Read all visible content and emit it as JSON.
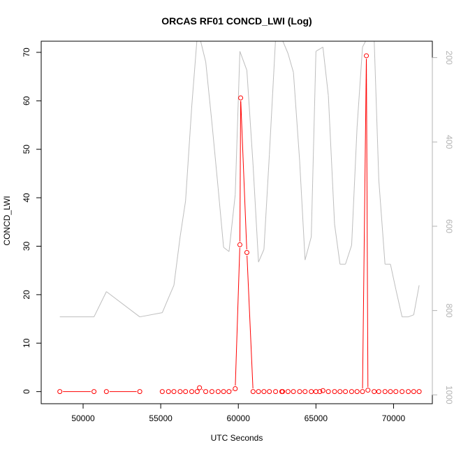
{
  "chart_data": {
    "type": "line",
    "title": "ORCAS RF01 CONCD_LWI (Log)",
    "xlabel": "UTC Seconds",
    "ylabel": "CONCD_LWI",
    "xlim": [
      47300,
      72500
    ],
    "ylim": [
      -2.5,
      72.3
    ],
    "x_ticks": [
      50000,
      55000,
      60000,
      65000,
      70000
    ],
    "y_ticks": [
      0,
      10,
      20,
      30,
      40,
      50,
      60,
      70
    ],
    "y2lim": [
      1021,
      161
    ],
    "y2_ticks": [
      200,
      400,
      600,
      800,
      1000
    ],
    "series": [
      {
        "role": "concentration",
        "color": "#ff0000",
        "marker": "open-circle",
        "x": [
          48500,
          50700,
          51500,
          53650,
          55100,
          55500,
          55850,
          56250,
          56600,
          57000,
          57350,
          57500,
          57900,
          58300,
          58700,
          59050,
          59400,
          59800,
          60100,
          60150,
          60550,
          60950,
          61300,
          61650,
          62000,
          62400,
          62800,
          62850,
          63200,
          63550,
          63950,
          64300,
          64700,
          65000,
          65250,
          65450,
          65800,
          66200,
          66550,
          66900,
          67300,
          67650,
          68000,
          68250,
          68350,
          68750,
          69050,
          69450,
          69800,
          70150,
          70550,
          70950,
          71300,
          71650
        ],
        "values": [
          0,
          0,
          0,
          0,
          0,
          0,
          0,
          0,
          0,
          0,
          0,
          0.8,
          0,
          0,
          0,
          0,
          0,
          0.6,
          30.3,
          60.6,
          28.7,
          0,
          0,
          0,
          0,
          0,
          0,
          0,
          0,
          0,
          0,
          0,
          0,
          0,
          0,
          0.2,
          0,
          0,
          0,
          0,
          0,
          0,
          0,
          69.3,
          0.3,
          0,
          0,
          0,
          0,
          0,
          0,
          0,
          0,
          0
        ],
        "line_breaks": [
          [
            50700,
            51500
          ],
          [
            53650,
            55100
          ]
        ]
      },
      {
        "role": "altitude",
        "color": "#bebebe",
        "axis": "right",
        "x": [
          48500,
          50700,
          51500,
          53650,
          55100,
          55500,
          55850,
          56250,
          56600,
          57000,
          57350,
          57500,
          57900,
          58300,
          58700,
          59050,
          59400,
          59800,
          60100,
          60550,
          60950,
          61300,
          61650,
          62000,
          62400,
          62800,
          63200,
          63550,
          63950,
          64300,
          64700,
          65000,
          65450,
          65800,
          66200,
          66550,
          66900,
          67300,
          67650,
          68000,
          68350,
          68750,
          69050,
          69450,
          69800,
          70150,
          70550,
          70950,
          71300,
          71650
        ],
        "values": [
          815,
          815,
          755,
          815,
          805,
          770,
          740,
          625,
          540,
          315,
          150,
          150,
          210,
          355,
          510,
          650,
          660,
          525,
          185,
          230,
          455,
          685,
          655,
          430,
          155,
          155,
          190,
          235,
          445,
          680,
          625,
          185,
          175,
          290,
          595,
          690,
          690,
          645,
          365,
          175,
          150,
          155,
          490,
          690,
          690,
          750,
          815,
          815,
          810,
          740
        ]
      }
    ]
  }
}
